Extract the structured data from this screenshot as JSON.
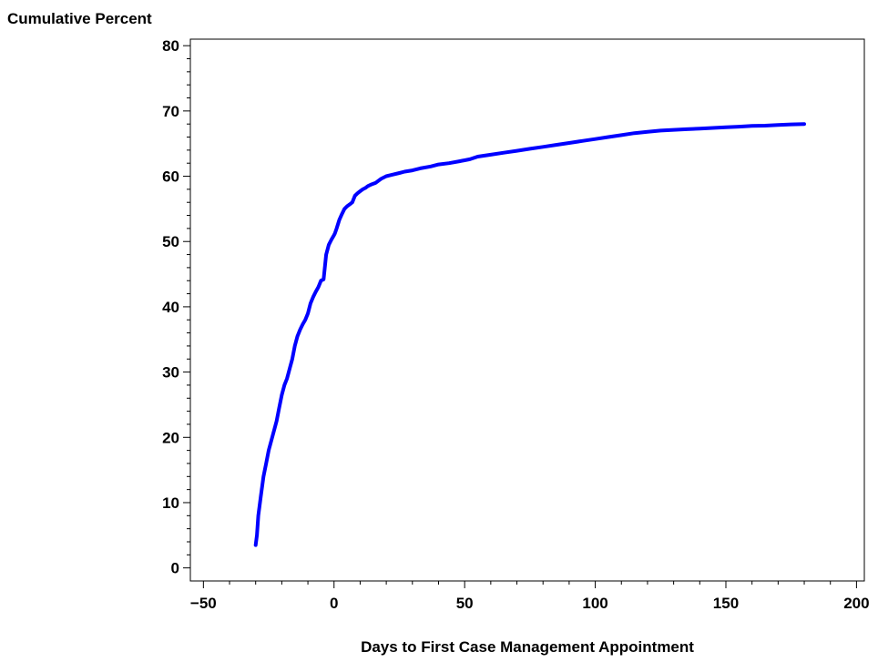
{
  "chart_data": {
    "type": "line",
    "xlabel": "Days to First Case Management Appointment",
    "ylabel": "Cumulative Percent",
    "xlim": [
      -55,
      203
    ],
    "ylim": [
      -2,
      81
    ],
    "xticks": [
      -50,
      0,
      50,
      100,
      150,
      200
    ],
    "xtick_labels": [
      "−50",
      "0",
      "50",
      "100",
      "150",
      "200"
    ],
    "yticks": [
      0,
      10,
      20,
      30,
      40,
      50,
      60,
      70,
      80
    ],
    "ytick_labels": [
      "0",
      "10",
      "20",
      "30",
      "40",
      "50",
      "60",
      "70",
      "80"
    ],
    "grid": false,
    "line_color": "#0000ff",
    "series": [
      {
        "x": [
          -30,
          -29.5,
          -29,
          -28,
          -27,
          -26,
          -25,
          -24,
          -23,
          -22,
          -21,
          -20,
          -19,
          -18,
          -17,
          -16,
          -15,
          -14,
          -13,
          -12,
          -11,
          -10,
          -9,
          -8,
          -7,
          -6,
          -5,
          -4,
          -3,
          -2,
          -1,
          0,
          0.3,
          1,
          2,
          3,
          4,
          5,
          6,
          7,
          8,
          9,
          10,
          11,
          12,
          13,
          14,
          16,
          18,
          20,
          22,
          25,
          27,
          30,
          33,
          37,
          40,
          44,
          48,
          52,
          55,
          60,
          65,
          70,
          75,
          80,
          85,
          90,
          95,
          100,
          105,
          110,
          115,
          120,
          125,
          130,
          135,
          140,
          145,
          150,
          155,
          160,
          165,
          170,
          175,
          180
        ],
        "y": [
          3.5,
          5,
          8,
          11,
          14,
          16,
          18,
          19.5,
          21,
          22.5,
          24.5,
          26.5,
          28,
          29,
          30.5,
          32,
          34,
          35.5,
          36.5,
          37.3,
          38,
          39,
          40.5,
          41.5,
          42.3,
          43,
          44,
          44.2,
          48,
          49.5,
          50.3,
          51,
          51.2,
          52,
          53.3,
          54.2,
          55,
          55.4,
          55.7,
          56,
          57,
          57.4,
          57.7,
          58,
          58.2,
          58.5,
          58.7,
          59,
          59.6,
          60,
          60.2,
          60.5,
          60.7,
          60.9,
          61.2,
          61.5,
          61.8,
          62,
          62.3,
          62.6,
          63,
          63.3,
          63.6,
          63.9,
          64.2,
          64.5,
          64.8,
          65.1,
          65.4,
          65.7,
          66,
          66.3,
          66.6,
          66.8,
          67,
          67.1,
          67.2,
          67.3,
          67.4,
          67.5,
          67.6,
          67.7,
          67.75,
          67.85,
          67.95,
          68.0
        ]
      }
    ]
  }
}
